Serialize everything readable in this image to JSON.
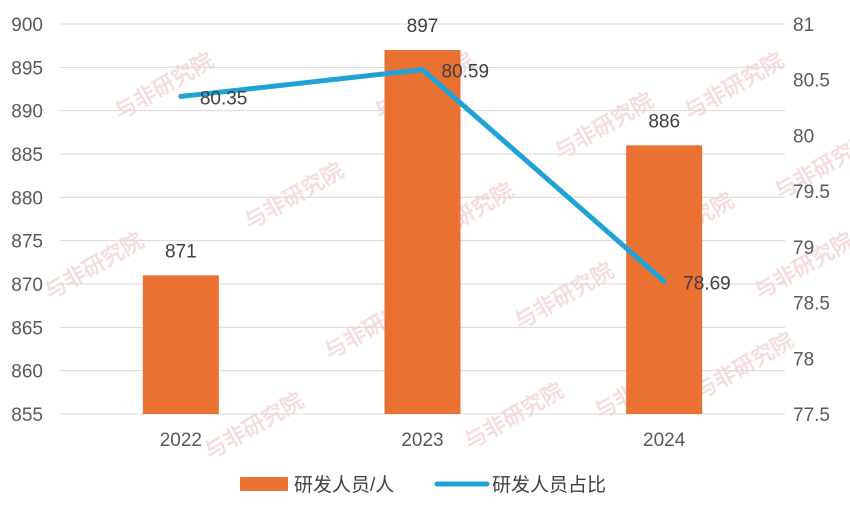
{
  "chart_data": {
    "type": "bar",
    "categories": [
      "2022",
      "2023",
      "2024"
    ],
    "series": [
      {
        "name": "研发人员/人",
        "type": "bar",
        "axis": "left",
        "values": [
          871,
          897,
          886
        ],
        "color": "#E97132"
      },
      {
        "name": "研发人员占比",
        "type": "line",
        "axis": "right",
        "values": [
          80.35,
          80.59,
          78.69
        ],
        "color": "#1FA3D6"
      }
    ],
    "bar_labels": [
      "871",
      "897",
      "886"
    ],
    "line_labels": [
      "80.35",
      "80.59",
      "78.69"
    ],
    "y_left": {
      "ylim": [
        855,
        900
      ],
      "ticks": [
        "855",
        "860",
        "865",
        "870",
        "875",
        "880",
        "885",
        "890",
        "895",
        "900"
      ]
    },
    "y_right": {
      "ylim": [
        77.5,
        81
      ],
      "ticks": [
        "77.5",
        "78",
        "78.5",
        "79",
        "79.5",
        "80",
        "80.5",
        "81"
      ]
    },
    "grid": true,
    "legend_position": "bottom",
    "title": "",
    "xlabel": "",
    "ylabel": ""
  },
  "watermark": "与非研究院"
}
